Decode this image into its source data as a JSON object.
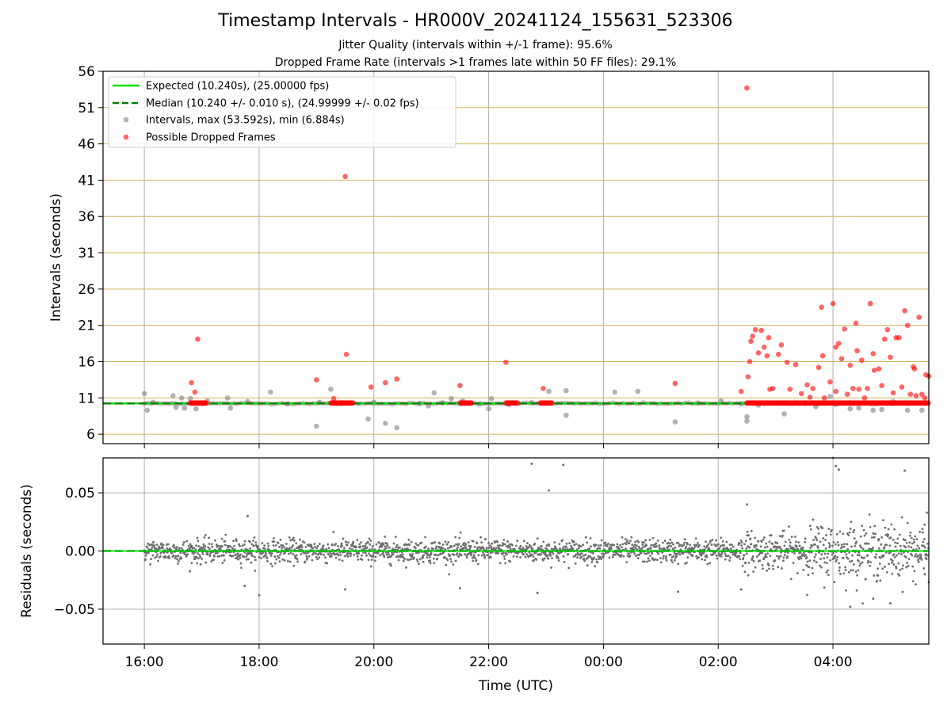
{
  "title": "Timestamp Intervals - HR000V_20241124_155631_523306",
  "subtitle_line1": "Jitter Quality (intervals within +/-1 frame): 95.6%",
  "subtitle_line2": "Dropped Frame Rate (intervals >1 frames late within 50 FF files): 29.1%",
  "colors": {
    "expected_line": "#00e000",
    "median_line": "#008000",
    "intervals_points": "#808080",
    "dropped_points": "#ff0000",
    "hgrid_top": "#d4b35a",
    "vgrid": "#b0b0b0",
    "residual_points": "#6e6e6e"
  },
  "chart_data": [
    {
      "type": "scatter",
      "ylabel": "Intervals (seconds)",
      "xlabel": "",
      "x_unit": "hours since 16:00 UTC axis origin",
      "xlim": [
        -0.72,
        13.67
      ],
      "ylim": [
        4.7,
        56
      ],
      "yticks": [
        6,
        11,
        16,
        21,
        26,
        31,
        36,
        41,
        46,
        51,
        56
      ],
      "xticks": [
        "16:00",
        "18:00",
        "20:00",
        "22:00",
        "00:00",
        "02:00",
        "04:00"
      ],
      "grid": true,
      "legend_placement": "top-left",
      "legend": [
        "Expected (10.240s), (25.00000 fps)",
        "Median (10.240 +/- 0.010 s), (24.99999 +/- 0.02 fps)",
        "Intervals, max (53.592s), min (6.884s)",
        "Possible Dropped Frames"
      ],
      "expected_value": 10.24,
      "median_value": 10.24,
      "series": [
        {
          "name": "Intervals, max (53.592s), min (6.884s)",
          "points": [
            [
              0.0,
              11.6
            ],
            [
              0.05,
              9.3
            ],
            [
              0.15,
              10.4
            ],
            [
              0.5,
              11.3
            ],
            [
              0.55,
              9.7
            ],
            [
              0.65,
              11.0
            ],
            [
              0.7,
              9.6
            ],
            [
              0.8,
              10.9
            ],
            [
              0.9,
              9.5
            ],
            [
              1.1,
              10.6
            ],
            [
              1.45,
              11.0
            ],
            [
              1.5,
              9.6
            ],
            [
              1.8,
              10.5
            ],
            [
              2.2,
              11.8
            ],
            [
              2.5,
              10.2
            ],
            [
              3.0,
              7.1
            ],
            [
              3.05,
              10.4
            ],
            [
              3.25,
              12.2
            ],
            [
              3.3,
              10.3
            ],
            [
              3.9,
              8.1
            ],
            [
              4.0,
              10.4
            ],
            [
              4.2,
              7.5
            ],
            [
              4.4,
              6.9
            ],
            [
              4.8,
              10.2
            ],
            [
              4.95,
              9.9
            ],
            [
              5.05,
              11.7
            ],
            [
              5.2,
              10.3
            ],
            [
              5.35,
              10.9
            ],
            [
              5.55,
              10.6
            ],
            [
              5.85,
              10.2
            ],
            [
              6.0,
              9.5
            ],
            [
              6.05,
              10.9
            ],
            [
              6.35,
              10.1
            ],
            [
              6.75,
              10.4
            ],
            [
              7.05,
              11.9
            ],
            [
              7.35,
              8.6
            ],
            [
              7.35,
              12.0
            ],
            [
              8.2,
              11.8
            ],
            [
              8.6,
              11.9
            ],
            [
              9.25,
              7.7
            ],
            [
              9.65,
              10.3
            ],
            [
              10.05,
              10.6
            ],
            [
              10.4,
              10.2
            ],
            [
              10.5,
              8.4
            ],
            [
              10.5,
              7.8
            ],
            [
              10.7,
              10.0
            ],
            [
              11.15,
              8.8
            ],
            [
              11.7,
              9.8
            ],
            [
              11.95,
              11.2
            ],
            [
              12.05,
              10.1
            ],
            [
              12.3,
              9.5
            ],
            [
              12.45,
              9.6
            ],
            [
              12.7,
              9.3
            ],
            [
              12.85,
              9.4
            ],
            [
              13.05,
              10.5
            ],
            [
              13.3,
              9.3
            ],
            [
              13.55,
              9.3
            ]
          ]
        },
        {
          "name": "Possible Dropped Frames",
          "points": [
            [
              0.82,
              13.1
            ],
            [
              0.88,
              11.8
            ],
            [
              0.93,
              19.1
            ],
            [
              3.0,
              13.5
            ],
            [
              3.3,
              10.9
            ],
            [
              3.5,
              41.5
            ],
            [
              3.52,
              17.0
            ],
            [
              3.95,
              12.5
            ],
            [
              4.2,
              13.1
            ],
            [
              4.4,
              13.6
            ],
            [
              5.5,
              12.7
            ],
            [
              6.3,
              15.9
            ],
            [
              6.95,
              12.3
            ],
            [
              9.25,
              13.0
            ],
            [
              10.4,
              11.9
            ],
            [
              10.5,
              53.7
            ],
            [
              10.52,
              13.9
            ],
            [
              10.55,
              16.0
            ],
            [
              10.57,
              18.8
            ],
            [
              10.6,
              19.5
            ],
            [
              10.65,
              20.4
            ],
            [
              10.7,
              17.2
            ],
            [
              10.75,
              20.3
            ],
            [
              10.8,
              18.0
            ],
            [
              10.85,
              16.8
            ],
            [
              10.88,
              19.3
            ],
            [
              10.9,
              12.2
            ],
            [
              10.95,
              12.3
            ],
            [
              11.05,
              17.0
            ],
            [
              11.1,
              18.3
            ],
            [
              11.2,
              15.9
            ],
            [
              11.25,
              12.2
            ],
            [
              11.35,
              15.6
            ],
            [
              11.45,
              11.6
            ],
            [
              11.55,
              12.8
            ],
            [
              11.6,
              11.1
            ],
            [
              11.65,
              12.3
            ],
            [
              11.75,
              15.2
            ],
            [
              11.8,
              23.5
            ],
            [
              11.82,
              16.8
            ],
            [
              11.85,
              11.0
            ],
            [
              11.95,
              13.2
            ],
            [
              12.05,
              11.9
            ],
            [
              12.0,
              24.0
            ],
            [
              12.05,
              18.0
            ],
            [
              12.1,
              18.5
            ],
            [
              12.15,
              16.4
            ],
            [
              12.2,
              20.5
            ],
            [
              12.25,
              11.5
            ],
            [
              12.3,
              15.5
            ],
            [
              12.35,
              12.3
            ],
            [
              12.4,
              21.3
            ],
            [
              12.42,
              17.5
            ],
            [
              12.45,
              12.2
            ],
            [
              12.5,
              16.2
            ],
            [
              12.55,
              11.0
            ],
            [
              12.6,
              12.3
            ],
            [
              12.65,
              24.0
            ],
            [
              12.7,
              17.1
            ],
            [
              12.72,
              14.8
            ],
            [
              12.8,
              15.0
            ],
            [
              12.85,
              12.7
            ],
            [
              12.9,
              19.1
            ],
            [
              12.95,
              20.4
            ],
            [
              13.0,
              16.6
            ],
            [
              13.05,
              11.7
            ],
            [
              13.1,
              19.3
            ],
            [
              13.15,
              19.3
            ],
            [
              13.2,
              12.5
            ],
            [
              13.25,
              23.0
            ],
            [
              13.3,
              21.0
            ],
            [
              13.35,
              11.5
            ],
            [
              13.4,
              15.3
            ],
            [
              13.42,
              15.0
            ],
            [
              13.45,
              11.3
            ],
            [
              13.5,
              22.1
            ],
            [
              13.55,
              11.5
            ],
            [
              13.6,
              11.0
            ],
            [
              13.62,
              14.2
            ],
            [
              13.67,
              14.0
            ]
          ]
        }
      ],
      "dropped_dense_segments": [
        [
          0.8,
          1.1
        ],
        [
          3.25,
          3.45
        ],
        [
          3.45,
          3.65
        ],
        [
          5.5,
          5.7
        ],
        [
          6.3,
          6.5
        ],
        [
          6.9,
          7.1
        ],
        [
          10.5,
          13.67
        ]
      ],
      "dropped_dense_value": 10.3
    },
    {
      "type": "scatter",
      "ylabel": "Residuals (seconds)",
      "xlabel": "Time (UTC)",
      "ylim": [
        -0.08,
        0.08
      ],
      "yticks": [
        "0.05",
        "0.00",
        "−0.05"
      ],
      "xticks": [
        "16:00",
        "18:00",
        "20:00",
        "22:00",
        "00:00",
        "02:00",
        "04:00"
      ],
      "grid": true,
      "zero_line": 0.0,
      "residual_x_range": [
        0.0,
        13.67
      ],
      "residual_typical_sd": 0.005,
      "outliers": [
        [
          1.8,
          0.03
        ],
        [
          1.75,
          -0.03
        ],
        [
          2.0,
          -0.038
        ],
        [
          3.5,
          -0.033
        ],
        [
          5.5,
          -0.032
        ],
        [
          6.75,
          0.075
        ],
        [
          7.3,
          0.074
        ],
        [
          7.05,
          0.052
        ],
        [
          6.85,
          -0.036
        ],
        [
          9.3,
          -0.035
        ],
        [
          10.4,
          -0.033
        ],
        [
          10.5,
          0.04
        ],
        [
          12.0,
          0.08
        ],
        [
          12.05,
          0.073
        ],
        [
          12.1,
          0.07
        ],
        [
          13.25,
          0.069
        ],
        [
          12.3,
          -0.048
        ],
        [
          13.0,
          -0.045
        ],
        [
          12.7,
          -0.041
        ],
        [
          13.6,
          -0.02
        ]
      ]
    }
  ]
}
